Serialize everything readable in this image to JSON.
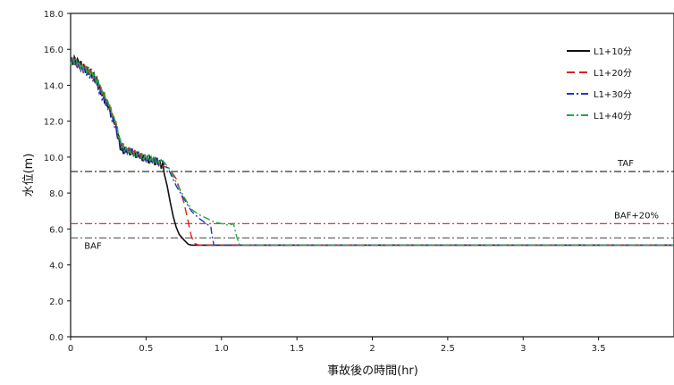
{
  "chart_data": {
    "type": "line",
    "xlabel": "事故後の時間(hr)",
    "ylabel": "水位(m)",
    "xlim": [
      0,
      4.0
    ],
    "ylim": [
      0,
      18.0
    ],
    "x_ticks": [
      "0",
      "0.5",
      "1.0",
      "1.5",
      "2",
      "2.5",
      "3",
      "3.5"
    ],
    "y_ticks": [
      "0.0",
      "2.0",
      "4.0",
      "6.0",
      "8.0",
      "10.0",
      "12.0",
      "14.0",
      "16.0",
      "18.0"
    ],
    "grid": false,
    "legend_position": "top-right",
    "reference_lines": [
      {
        "label": "TAF",
        "y": 9.2,
        "color": "#333333",
        "style": "dashdot"
      },
      {
        "label": "BAF+20%",
        "y": 6.3,
        "color": "#cc2222",
        "style": "dashdot"
      },
      {
        "label": "BAF",
        "y": 5.5,
        "color": "#666666",
        "style": "dashdot"
      }
    ],
    "series": [
      {
        "name": "L1+10分",
        "color": "#111111",
        "style": "solid",
        "x": [
          0.0,
          0.03,
          0.06,
          0.1,
          0.14,
          0.18,
          0.2,
          0.25,
          0.3,
          0.33,
          0.35,
          0.4,
          0.45,
          0.5,
          0.55,
          0.6,
          0.62,
          0.64,
          0.66,
          0.68,
          0.7,
          0.72,
          0.75,
          0.78,
          0.8,
          1.0,
          1.5,
          2.0,
          2.5,
          3.0,
          3.5,
          4.0
        ],
        "y": [
          15.3,
          15.4,
          15.2,
          14.9,
          14.7,
          14.1,
          13.6,
          12.8,
          11.7,
          10.6,
          10.4,
          10.3,
          10.1,
          9.9,
          9.8,
          9.6,
          9.3,
          8.4,
          7.5,
          6.7,
          6.1,
          5.7,
          5.4,
          5.15,
          5.1,
          5.1,
          5.1,
          5.1,
          5.1,
          5.1,
          5.1,
          5.1
        ]
      },
      {
        "name": "L1+20分",
        "color": "#dd2222",
        "style": "longdash",
        "x": [
          0.0,
          0.03,
          0.06,
          0.1,
          0.14,
          0.18,
          0.2,
          0.25,
          0.3,
          0.33,
          0.35,
          0.4,
          0.45,
          0.5,
          0.55,
          0.6,
          0.65,
          0.7,
          0.72,
          0.75,
          0.78,
          0.8,
          0.82,
          0.85,
          1.0,
          1.5,
          2.0,
          2.5,
          3.0,
          3.5,
          4.0
        ],
        "y": [
          15.3,
          15.3,
          15.1,
          14.9,
          14.6,
          14.2,
          13.7,
          12.9,
          11.8,
          10.7,
          10.4,
          10.3,
          10.1,
          9.9,
          9.8,
          9.6,
          9.4,
          8.8,
          8.3,
          7.5,
          6.4,
          5.6,
          5.2,
          5.1,
          5.1,
          5.1,
          5.1,
          5.1,
          5.1,
          5.1,
          5.1
        ]
      },
      {
        "name": "L1+30分",
        "color": "#2233cc",
        "style": "dashdot",
        "x": [
          0.0,
          0.03,
          0.06,
          0.1,
          0.14,
          0.18,
          0.2,
          0.25,
          0.3,
          0.33,
          0.35,
          0.4,
          0.45,
          0.5,
          0.55,
          0.6,
          0.65,
          0.7,
          0.75,
          0.8,
          0.85,
          0.9,
          0.93,
          0.94,
          0.95,
          1.0,
          1.5,
          2.0,
          2.5,
          3.0,
          3.5,
          4.0
        ],
        "y": [
          15.3,
          15.3,
          15.0,
          14.8,
          14.5,
          14.0,
          13.5,
          12.7,
          11.6,
          10.6,
          10.4,
          10.3,
          10.1,
          9.9,
          9.8,
          9.7,
          9.3,
          8.4,
          7.7,
          7.0,
          6.6,
          6.3,
          6.1,
          5.5,
          5.1,
          5.1,
          5.1,
          5.1,
          5.1,
          5.1,
          5.1,
          5.1
        ]
      },
      {
        "name": "L1+40分",
        "color": "#22aa44",
        "style": "dashdot",
        "x": [
          0.0,
          0.03,
          0.06,
          0.1,
          0.14,
          0.18,
          0.2,
          0.25,
          0.3,
          0.33,
          0.35,
          0.4,
          0.45,
          0.5,
          0.55,
          0.6,
          0.65,
          0.7,
          0.75,
          0.8,
          0.85,
          0.9,
          0.95,
          1.0,
          1.05,
          1.08,
          1.1,
          1.12,
          1.5,
          2.0,
          2.5,
          3.0,
          3.5,
          4.0
        ],
        "y": [
          15.3,
          15.4,
          15.1,
          14.9,
          14.7,
          14.2,
          13.8,
          13.0,
          11.9,
          10.8,
          10.5,
          10.3,
          10.1,
          10.0,
          9.8,
          9.7,
          9.4,
          8.6,
          7.8,
          7.1,
          6.8,
          6.6,
          6.4,
          6.3,
          6.2,
          6.3,
          5.6,
          5.1,
          5.1,
          5.1,
          5.1,
          5.1,
          5.1,
          5.1
        ]
      }
    ]
  }
}
